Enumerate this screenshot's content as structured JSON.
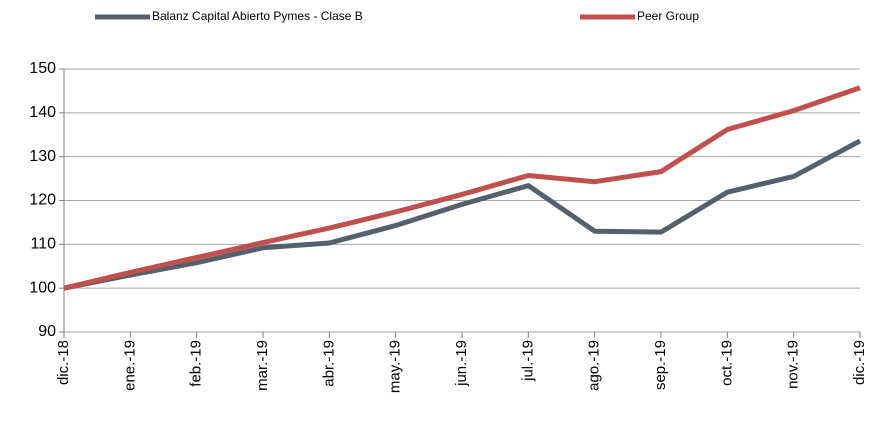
{
  "chart_data": {
    "type": "line",
    "categories": [
      "dic.-18",
      "ene.-19",
      "feb.-19",
      "mar.-19",
      "abr.-19",
      "may.-19",
      "jun.-19",
      "jul.-19",
      "ago.-19",
      "sep.-19",
      "oct.-19",
      "nov.-19",
      "dic.-19"
    ],
    "series": [
      {
        "name": "Balanz Capital Abierto Pymes - Clase B",
        "color": "#56606a",
        "values": [
          100,
          103,
          105.8,
          109.2,
          110.3,
          114.3,
          119.1,
          123.4,
          113,
          112.8,
          121.9,
          125.5,
          133.6
        ]
      },
      {
        "name": "Peer Group",
        "color": "#c0504d",
        "values": [
          100,
          103.6,
          107,
          110.4,
          113.7,
          117.4,
          121.4,
          125.7,
          124.3,
          126.6,
          136.2,
          140.5,
          145.7
        ]
      }
    ],
    "ylim": [
      90,
      150
    ],
    "yticks": [
      90,
      100,
      110,
      120,
      130,
      140,
      150
    ],
    "grid": true
  }
}
